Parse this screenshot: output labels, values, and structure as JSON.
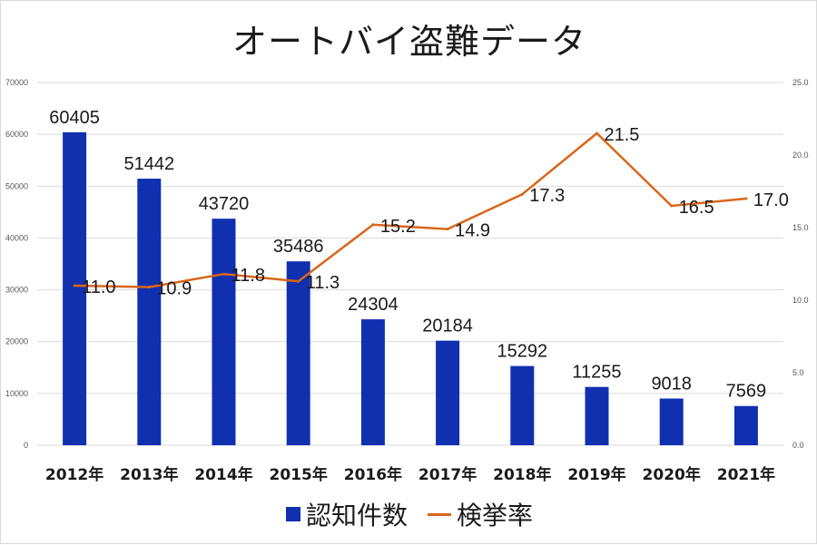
{
  "chart_data": {
    "type": "bar",
    "title": "オートバイ盗難データ",
    "categories": [
      "2012年",
      "2013年",
      "2014年",
      "2015年",
      "2016年",
      "2017年",
      "2018年",
      "2019年",
      "2020年",
      "2021年"
    ],
    "series": [
      {
        "name": "認知件数",
        "type": "bar",
        "axis": "left",
        "color": "#1030b0",
        "values": [
          60405,
          51442,
          43720,
          35486,
          24304,
          20184,
          15292,
          11255,
          9018,
          7569
        ],
        "labels": [
          "60405",
          "51442",
          "43720",
          "35486",
          "24304",
          "20184",
          "15292",
          "11255",
          "9018",
          "7569"
        ]
      },
      {
        "name": "検挙率",
        "type": "line",
        "axis": "right",
        "color": "#d9661a",
        "values": [
          11.0,
          10.9,
          11.8,
          11.3,
          15.2,
          14.9,
          17.3,
          21.5,
          16.5,
          17.0
        ],
        "labels": [
          "11.0",
          "10.9",
          "11.8",
          "11.3",
          "15.2",
          "14.9",
          "17.3",
          "21.5",
          "16.5",
          "17.0"
        ]
      }
    ],
    "y_left": {
      "min": 0,
      "max": 70000,
      "ticks": [
        0,
        10000,
        20000,
        30000,
        40000,
        50000,
        60000,
        70000
      ],
      "tick_labels": [
        "0",
        "10000",
        "20000",
        "30000",
        "40000",
        "50000",
        "60000",
        "70000"
      ]
    },
    "y_right": {
      "min": 0,
      "max": 25,
      "ticks": [
        0,
        5,
        10,
        15,
        20,
        25
      ],
      "tick_labels": [
        "0.0",
        "5.0",
        "10.0",
        "15.0",
        "20.0",
        "25.0"
      ]
    },
    "grid": true,
    "legend_position": "bottom"
  }
}
